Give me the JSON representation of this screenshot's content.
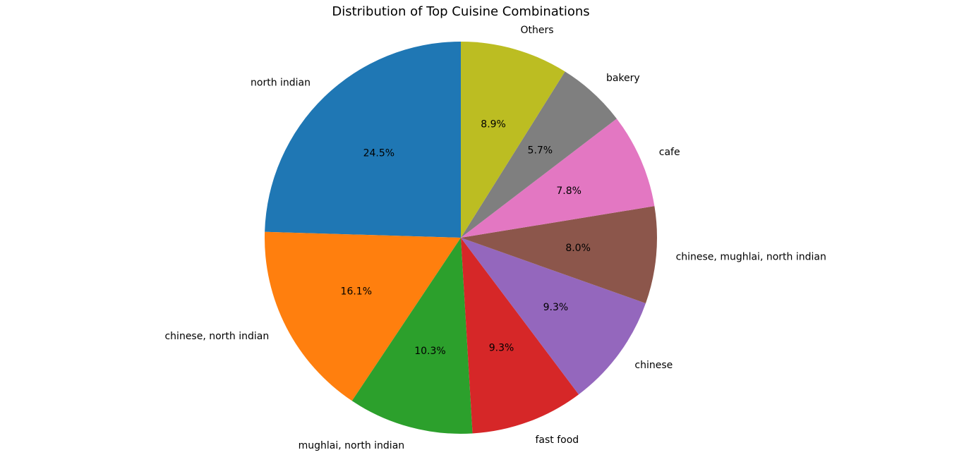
{
  "chart_data": {
    "type": "pie",
    "title": "Distribution of Top Cuisine Combinations",
    "start_angle_deg": 90,
    "direction": "counterclockwise",
    "slices": [
      {
        "label": "north indian",
        "value": 24.5,
        "pct_label": "24.5%",
        "color": "#1f77b4"
      },
      {
        "label": "chinese, north indian",
        "value": 16.1,
        "pct_label": "16.1%",
        "color": "#ff7f0e"
      },
      {
        "label": "mughlai, north indian",
        "value": 10.3,
        "pct_label": "10.3%",
        "color": "#2ca02c"
      },
      {
        "label": "fast food",
        "value": 9.3,
        "pct_label": "9.3%",
        "color": "#d62728"
      },
      {
        "label": "chinese",
        "value": 9.3,
        "pct_label": "9.3%",
        "color": "#9467bd"
      },
      {
        "label": "chinese, mughlai, north indian",
        "value": 8.0,
        "pct_label": "8.0%",
        "color": "#8c564b"
      },
      {
        "label": "cafe",
        "value": 7.8,
        "pct_label": "7.8%",
        "color": "#e377c2"
      },
      {
        "label": "bakery",
        "value": 5.7,
        "pct_label": "5.7%",
        "color": "#7f7f7f"
      },
      {
        "label": "Others",
        "value": 8.9,
        "pct_label": "8.9%",
        "color": "#bcbd22"
      }
    ]
  }
}
